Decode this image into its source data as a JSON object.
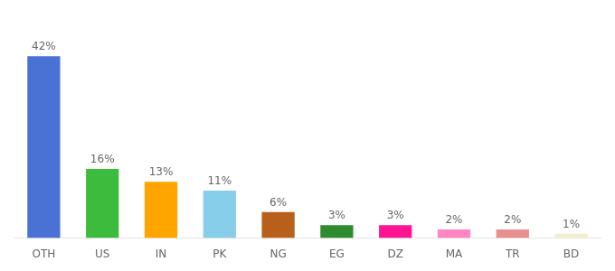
{
  "chart_data": {
    "type": "bar",
    "categories": [
      "OTH",
      "US",
      "IN",
      "PK",
      "NG",
      "EG",
      "DZ",
      "MA",
      "TR",
      "BD"
    ],
    "values": [
      42,
      16,
      13,
      11,
      6,
      3,
      3,
      2,
      2,
      1
    ],
    "value_labels": [
      "42%",
      "16%",
      "13%",
      "11%",
      "6%",
      "3%",
      "3%",
      "2%",
      "2%",
      "1%"
    ],
    "colors": [
      "#4a72d4",
      "#3dbb3d",
      "#ffa500",
      "#87ceeb",
      "#b8601a",
      "#2e8b2e",
      "#ff1493",
      "#ff85c0",
      "#e89090",
      "#f0eecc"
    ],
    "ylim": [
      0,
      50
    ],
    "data_labels": true,
    "tick_labels": "x",
    "grid": false
  }
}
